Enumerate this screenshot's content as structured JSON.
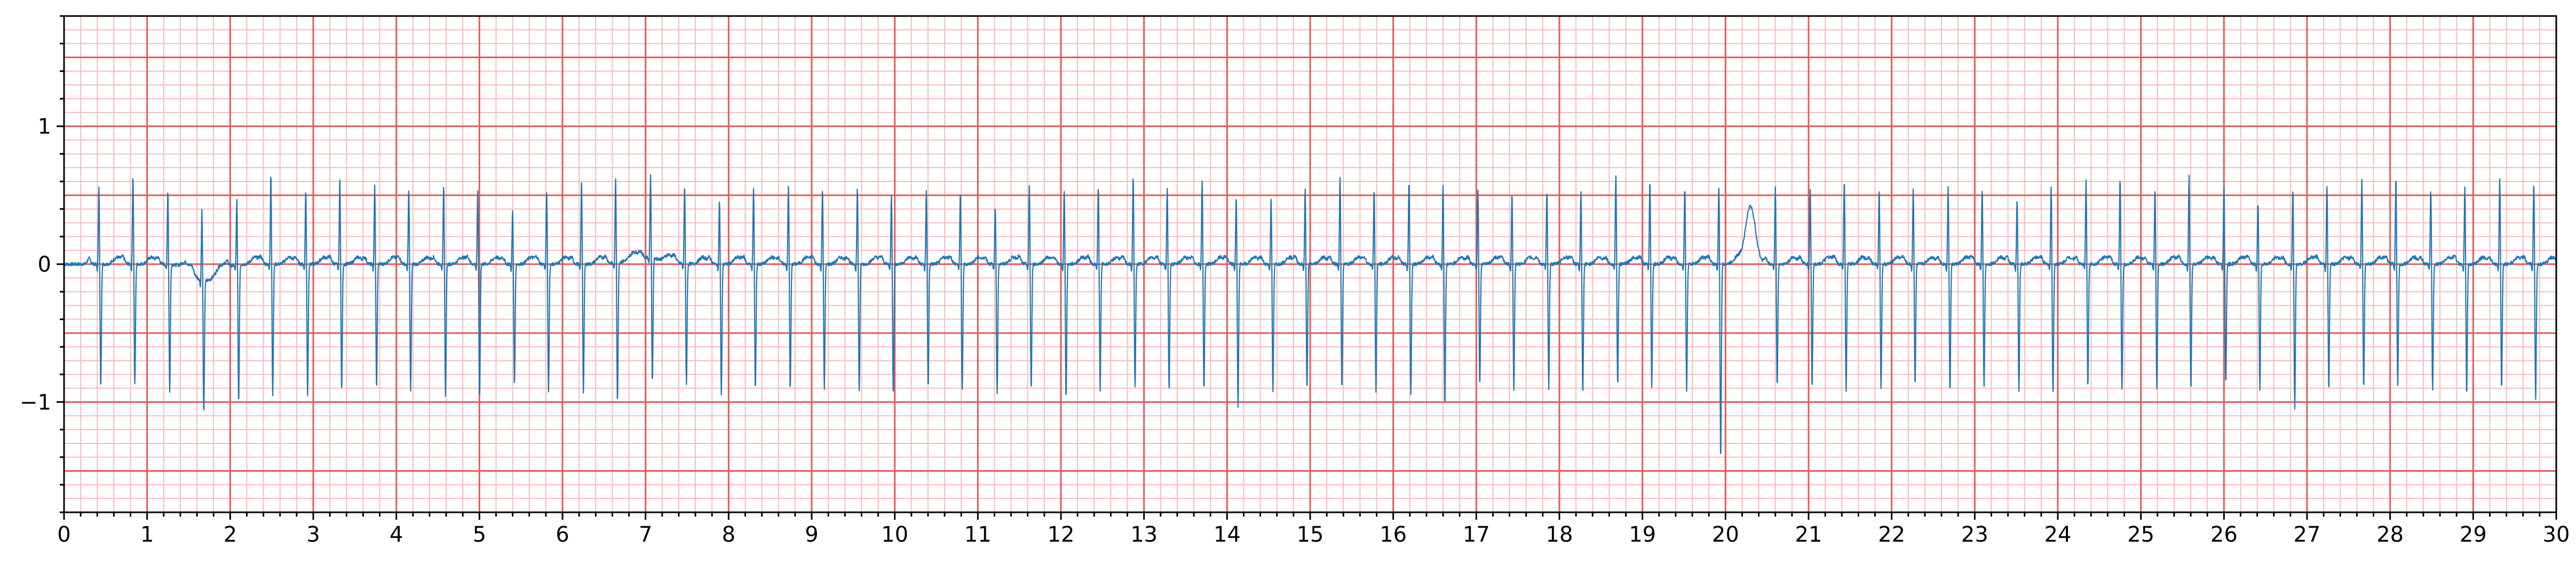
{
  "chart_data": {
    "type": "line",
    "title": "",
    "xlabel": "",
    "ylabel": "",
    "xlim": [
      0,
      30
    ],
    "ylim": [
      -1.8,
      1.8
    ],
    "x_ticks": [
      0,
      1,
      2,
      3,
      4,
      5,
      6,
      7,
      8,
      9,
      10,
      11,
      12,
      13,
      14,
      15,
      16,
      17,
      18,
      19,
      20,
      21,
      22,
      23,
      24,
      25,
      26,
      27,
      28,
      29,
      30
    ],
    "x_tick_labels": [
      "0",
      "1",
      "2",
      "3",
      "4",
      "5",
      "6",
      "7",
      "8",
      "9",
      "10",
      "11",
      "12",
      "13",
      "14",
      "15",
      "16",
      "17",
      "18",
      "19",
      "20",
      "21",
      "22",
      "23",
      "24",
      "25",
      "26",
      "27",
      "28",
      "29",
      "30"
    ],
    "y_ticks": [
      -1,
      0,
      1
    ],
    "y_tick_labels": [
      "−1",
      "0",
      "1"
    ],
    "grid": {
      "major_x_step": 1,
      "minor_x_step": 0.2,
      "major_y_step": 0.5,
      "minor_y_step": 0.1,
      "major_color": "#e8585a",
      "minor_color": "#f7bcbd"
    },
    "line_color": "#1f77b4",
    "series": [
      {
        "r_peaks": [
          0.42,
          0.83,
          1.25,
          1.66,
          2.08,
          2.49,
          2.91,
          3.32,
          3.74,
          4.15,
          4.57,
          4.98,
          5.4,
          5.81,
          6.23,
          6.64,
          7.06,
          7.47,
          7.89,
          8.3,
          8.72,
          9.13,
          9.55,
          9.96,
          10.38,
          10.79,
          11.21,
          11.62,
          12.04,
          12.45,
          12.87,
          13.28,
          13.7,
          14.11,
          14.53,
          14.94,
          15.36,
          15.77,
          16.19,
          16.6,
          17.02,
          17.43,
          17.85,
          18.26,
          18.68,
          19.09,
          19.51,
          19.92,
          20.6,
          21.02,
          21.43,
          21.85,
          22.26,
          22.68,
          23.09,
          23.51,
          23.92,
          24.34,
          24.75,
          25.17,
          25.58,
          26.0,
          26.41,
          26.83,
          27.24,
          27.66,
          28.07,
          28.49,
          28.9,
          29.32,
          29.73
        ],
        "r_amplitudes": [
          0.58,
          0.66,
          0.55,
          0.52,
          0.48,
          0.68,
          0.55,
          0.62,
          0.58,
          0.56,
          0.58,
          0.55,
          0.4,
          0.55,
          0.62,
          0.63,
          0.62,
          0.58,
          0.48,
          0.56,
          0.58,
          0.55,
          0.57,
          0.52,
          0.55,
          0.54,
          0.43,
          0.58,
          0.55,
          0.58,
          0.65,
          0.55,
          0.62,
          0.5,
          0.5,
          0.55,
          0.64,
          0.55,
          0.62,
          0.58,
          0.55,
          0.52,
          0.55,
          0.53,
          0.66,
          0.62,
          0.57,
          0.58,
          0.58,
          0.55,
          0.62,
          0.55,
          0.55,
          0.58,
          0.55,
          0.48,
          0.58,
          0.62,
          0.64,
          0.55,
          0.65,
          0.58,
          0.46,
          0.56,
          0.58,
          0.62,
          0.64,
          0.55,
          0.58,
          0.64,
          0.59
        ],
        "s_amplitudes": [
          -0.9,
          -0.88,
          -0.93,
          -0.98,
          -1.02,
          -0.95,
          -0.95,
          -0.92,
          -0.9,
          -0.92,
          -0.95,
          -0.98,
          -0.88,
          -0.92,
          -0.93,
          -1.02,
          -0.9,
          -0.88,
          -0.95,
          -0.92,
          -0.92,
          -0.9,
          -0.92,
          -0.95,
          -0.9,
          -0.92,
          -0.95,
          -0.92,
          -0.98,
          -0.92,
          -0.9,
          -0.92,
          -0.92,
          -1.05,
          -0.93,
          -0.92,
          -0.9,
          -0.92,
          -0.95,
          -1.02,
          -0.88,
          -0.92,
          -0.9,
          -0.95,
          -0.88,
          -0.9,
          -0.92,
          -1.42,
          -0.88,
          -0.9,
          -0.92,
          -0.9,
          -0.88,
          -0.92,
          -0.9,
          -0.92,
          -0.95,
          -0.9,
          -0.92,
          -0.9,
          -0.92,
          -0.88,
          -0.92,
          -1.05,
          -0.92,
          -0.9,
          -0.88,
          -0.92,
          -0.95,
          -0.9,
          -0.98
        ]
      }
    ]
  }
}
